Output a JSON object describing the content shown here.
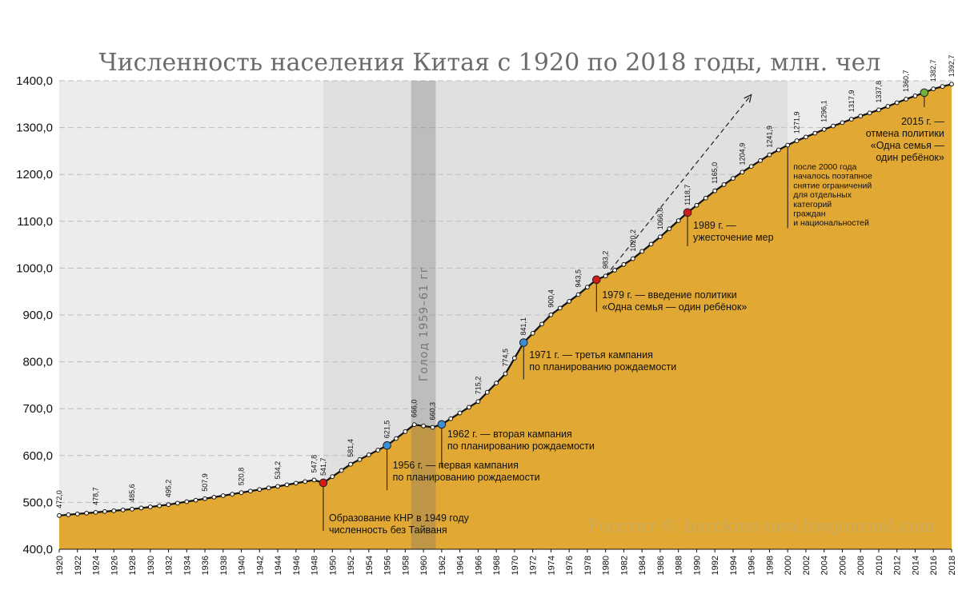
{
  "chart_data": {
    "type": "area",
    "title": "Численность населения Китая с 1920 по 2018 годы, млн. чел",
    "xlabel": "",
    "ylabel": "",
    "ylim": [
      400,
      1400
    ],
    "y_ticks": [
      "400,0",
      "500,0",
      "600,0",
      "700,0",
      "800,0",
      "900,0",
      "1000,0",
      "1100,0",
      "1200,0",
      "1300,0",
      "1400,0"
    ],
    "x_ticks": [
      "1920",
      "1922",
      "1924",
      "1926",
      "1928",
      "1930",
      "1932",
      "1934",
      "1936",
      "1938",
      "1940",
      "1942",
      "1944",
      "1946",
      "1948",
      "1950",
      "1952",
      "1954",
      "1956",
      "1958",
      "1960",
      "1962",
      "1964",
      "1966",
      "1968",
      "1970",
      "1972",
      "1974",
      "1976",
      "1978",
      "1980",
      "1982",
      "1984",
      "1986",
      "1988",
      "1990",
      "1992",
      "1994",
      "1996",
      "1998",
      "2000",
      "2002",
      "2004",
      "2006",
      "2008",
      "2010",
      "2012",
      "2014",
      "2016",
      "2018"
    ],
    "grid": true,
    "colors": {
      "area": "#e2a834",
      "line": "#111111",
      "marker_red": "#d11a1a",
      "marker_blue": "#3b8fd4",
      "marker_green": "#6fb23a"
    },
    "anchors": [
      {
        "year": 1920,
        "value": 472.0
      },
      {
        "year": 1924,
        "value": 478.7
      },
      {
        "year": 1928,
        "value": 485.6
      },
      {
        "year": 1932,
        "value": 495.2
      },
      {
        "year": 1936,
        "value": 507.9
      },
      {
        "year": 1940,
        "value": 520.8
      },
      {
        "year": 1944,
        "value": 534.2
      },
      {
        "year": 1948,
        "value": 547.8
      },
      {
        "year": 1949,
        "value": 541.7
      },
      {
        "year": 1952,
        "value": 581.4
      },
      {
        "year": 1956,
        "value": 621.5
      },
      {
        "year": 1959,
        "value": 666.0
      },
      {
        "year": 1961,
        "value": 660.3
      },
      {
        "year": 1962,
        "value": 666.5
      },
      {
        "year": 1966,
        "value": 715.2
      },
      {
        "year": 1969,
        "value": 774.5
      },
      {
        "year": 1971,
        "value": 841.1
      },
      {
        "year": 1974,
        "value": 900.4
      },
      {
        "year": 1977,
        "value": 943.5
      },
      {
        "year": 1979,
        "value": 975.4
      },
      {
        "year": 1980,
        "value": 983.2
      },
      {
        "year": 1983,
        "value": 1020.2
      },
      {
        "year": 1986,
        "value": 1066.8
      },
      {
        "year": 1989,
        "value": 1118.7
      },
      {
        "year": 1992,
        "value": 1165.0
      },
      {
        "year": 1995,
        "value": 1204.9
      },
      {
        "year": 1998,
        "value": 1241.9
      },
      {
        "year": 2000,
        "value": 1262.6
      },
      {
        "year": 2001,
        "value": 1271.9
      },
      {
        "year": 2004,
        "value": 1296.1
      },
      {
        "year": 2007,
        "value": 1317.9
      },
      {
        "year": 2010,
        "value": 1337.8
      },
      {
        "year": 2013,
        "value": 1360.7
      },
      {
        "year": 2015,
        "value": 1374.6
      },
      {
        "year": 2016,
        "value": 1382.7
      },
      {
        "year": 2018,
        "value": 1392.7
      }
    ],
    "value_labels": [
      {
        "year": 1920,
        "text": "472,0"
      },
      {
        "year": 1924,
        "text": "478,7"
      },
      {
        "year": 1928,
        "text": "485,6"
      },
      {
        "year": 1932,
        "text": "495,2"
      },
      {
        "year": 1936,
        "text": "507,9"
      },
      {
        "year": 1940,
        "text": "520,8"
      },
      {
        "year": 1944,
        "text": "534,2"
      },
      {
        "year": 1948,
        "text": "547,8"
      },
      {
        "year": 1949,
        "text": "541,7"
      },
      {
        "year": 1952,
        "text": "581,4"
      },
      {
        "year": 1956,
        "text": "621,5"
      },
      {
        "year": 1959,
        "text": "666,0"
      },
      {
        "year": 1961,
        "text": "660,3"
      },
      {
        "year": 1966,
        "text": "715,2"
      },
      {
        "year": 1969,
        "text": "774,5"
      },
      {
        "year": 1971,
        "text": "841,1"
      },
      {
        "year": 1974,
        "text": "900,4"
      },
      {
        "year": 1977,
        "text": "943,5"
      },
      {
        "year": 1980,
        "text": "983,2"
      },
      {
        "year": 1983,
        "text": "1020,2"
      },
      {
        "year": 1986,
        "text": "1066,8"
      },
      {
        "year": 1989,
        "text": "1118,7"
      },
      {
        "year": 1992,
        "text": "1165,0"
      },
      {
        "year": 1995,
        "text": "1204,9"
      },
      {
        "year": 1998,
        "text": "1241,9"
      },
      {
        "year": 2001,
        "text": "1271,9"
      },
      {
        "year": 2004,
        "text": "1296,1"
      },
      {
        "year": 2007,
        "text": "1317,9"
      },
      {
        "year": 2010,
        "text": "1337,8"
      },
      {
        "year": 2013,
        "text": "1360,7"
      },
      {
        "year": 2016,
        "text": "1382,7"
      },
      {
        "year": 2018,
        "text": "1392,7"
      }
    ],
    "highlighted_points": [
      {
        "year": 1949,
        "color": "red"
      },
      {
        "year": 1956,
        "color": "blue"
      },
      {
        "year": 1962,
        "color": "blue"
      },
      {
        "year": 1971,
        "color": "blue"
      },
      {
        "year": 1979,
        "color": "red"
      },
      {
        "year": 1989,
        "color": "red"
      },
      {
        "year": 2015,
        "color": "green"
      }
    ],
    "shaded_periods": [
      {
        "from": 1949,
        "to": 2000,
        "shade": "light"
      },
      {
        "from": 1959,
        "to": 1961,
        "shade": "dark",
        "label": "Голод 1959–61 гг"
      }
    ],
    "trend_arrow": {
      "from_year": 1980,
      "from_value": 983.2,
      "to_year": 1996,
      "to_value": 1370
    },
    "annotations": [
      {
        "year": 1949,
        "lines": [
          "Образование КНР в 1949 году",
          "численность без Тайваня"
        ]
      },
      {
        "year": 1956,
        "lines": [
          "1956 г. — первая кампания",
          "по планированию рождаемости"
        ]
      },
      {
        "year": 1962,
        "lines": [
          "1962 г. — вторая кампания",
          "по планированию рождаемости"
        ]
      },
      {
        "year": 1971,
        "lines": [
          "1971 г. — третья кампания",
          "по планированию рождаемости"
        ]
      },
      {
        "year": 1979,
        "lines": [
          "1979 г. — введение политики",
          "«Одна семья — один ребёнок»"
        ]
      },
      {
        "year": 1989,
        "lines": [
          "1989 г. —",
          "ужесточение мер"
        ]
      },
      {
        "year": 2000,
        "lines": [
          "после 2000 года",
          "началось поэтапное",
          "снятие ограничений",
          "для отдельных",
          "категорий",
          "граждан",
          "и национальностей"
        ]
      },
      {
        "year": 2015,
        "lines": [
          "2015 г. —",
          "отмена политики",
          "«Одна семья —",
          "один ребёнок»"
        ]
      }
    ],
    "source": "Росстат © burckina-new.livejournal.com"
  }
}
